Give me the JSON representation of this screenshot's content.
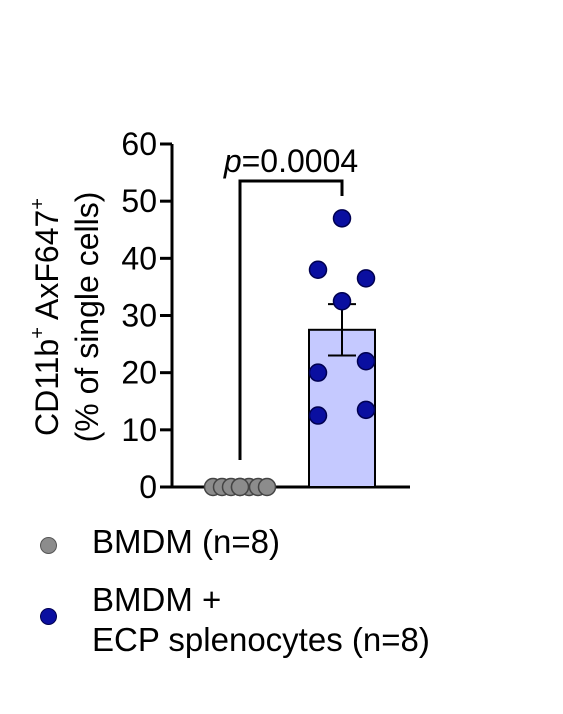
{
  "chart_data": {
    "type": "bar",
    "ylabel_line1": "CD11b",
    "ylabel_sup1": "+",
    "ylabel_line1b": " AxF647",
    "ylabel_sup2": "+",
    "ylabel_line2": "(% of single cells)",
    "ylim": [
      0,
      60
    ],
    "yticks": [
      0,
      10,
      20,
      30,
      40,
      50,
      60
    ],
    "annotation": "p=0.0004",
    "annotation_italic": "p",
    "annotation_value": "=0.0004",
    "groups": [
      {
        "name": "BMDM (n=8)",
        "mean": 0,
        "sem": 0,
        "bar_color": "#ffffff",
        "point_color": "#8c8c8c",
        "points": [
          0,
          0,
          0,
          0,
          0,
          0,
          0,
          0
        ]
      },
      {
        "name_line1": "BMDM +",
        "name_line2": "ECP splenocytes (n=8)",
        "mean": 27.5,
        "sem": 4.5,
        "bar_color": "#c5c9ff",
        "point_color": "#0a0fa0",
        "points": [
          47,
          38,
          36.5,
          32.5,
          22,
          20,
          13.5,
          12.5
        ]
      }
    ],
    "grid": false
  },
  "legend": {
    "item1": "BMDM (n=8)",
    "item2_line1": "BMDM +",
    "item2_line2": "ECP splenocytes (n=8)",
    "item1_color": "#8c8c8c",
    "item2_color": "#0a0fa0"
  }
}
